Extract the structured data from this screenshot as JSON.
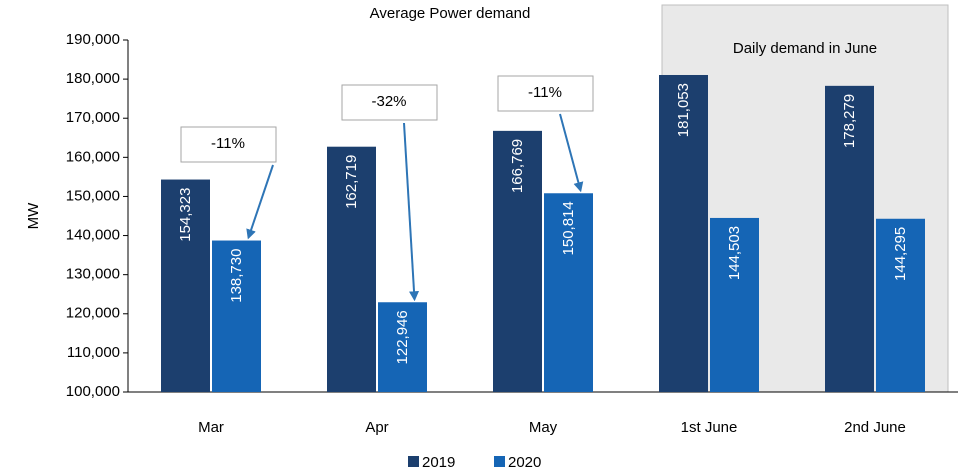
{
  "chart_data": {
    "type": "bar",
    "title": "Average Power demand",
    "ylabel": "MW",
    "categories": [
      "Mar",
      "Apr",
      "May",
      "1st June",
      "2nd June"
    ],
    "series": [
      {
        "name": "2019",
        "color": "#1c3f6e",
        "values": [
          154323,
          162719,
          166769,
          181053,
          178279
        ],
        "value_labels": [
          "154,323",
          "162,719",
          "166,769",
          "181,053",
          "178,279"
        ]
      },
      {
        "name": "2020",
        "color": "#1565b5",
        "values": [
          138730,
          122946,
          150814,
          144503,
          144295
        ],
        "value_labels": [
          "138,730",
          "122,946",
          "150,814",
          "144,503",
          "144,295"
        ]
      }
    ],
    "annotations": [
      "-11%",
      "-32%",
      "-11%"
    ],
    "highlight_label": "Daily demand in June",
    "ylim": [
      100000,
      190000
    ],
    "yticks": [
      {
        "value": 100000,
        "label": "100,000"
      },
      {
        "value": 110000,
        "label": "110,000"
      },
      {
        "value": 120000,
        "label": "120,000"
      },
      {
        "value": 130000,
        "label": "130,000"
      },
      {
        "value": 140000,
        "label": "140,000"
      },
      {
        "value": 150000,
        "label": "150,000"
      },
      {
        "value": 160000,
        "label": "160,000"
      },
      {
        "value": 170000,
        "label": "170,000"
      },
      {
        "value": 180000,
        "label": "180,000"
      },
      {
        "value": 190000,
        "label": "190,000"
      }
    ],
    "legend": "bottom"
  }
}
